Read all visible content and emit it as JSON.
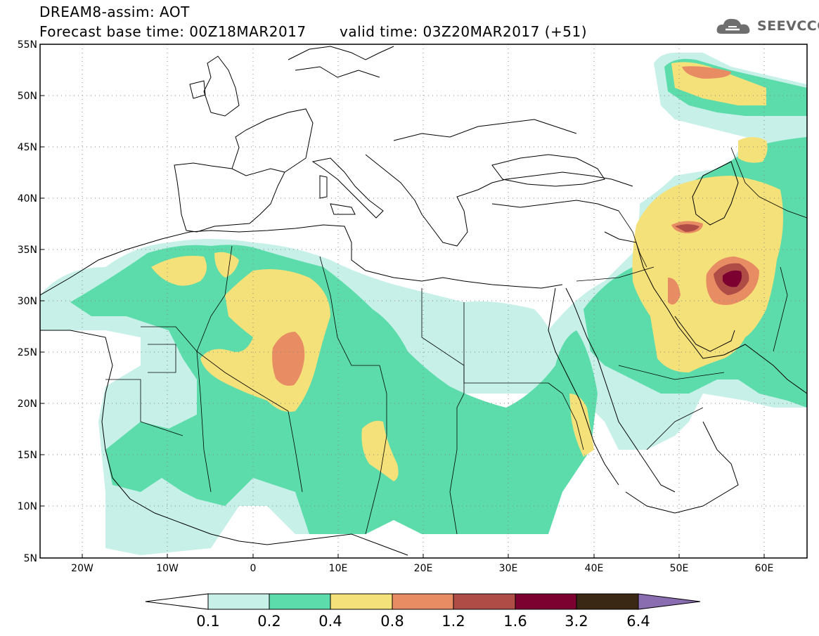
{
  "title": {
    "line1": "DREAM8-assim: AOT",
    "line2": "Forecast base time: 00Z18MAR2017",
    "line3": "valid time: 03Z20MAR2017 (+51)"
  },
  "logo": {
    "text": "SEEVCCC",
    "icon": "cloud-logo-icon"
  },
  "axes": {
    "lat_labels": [
      "55N",
      "50N",
      "45N",
      "40N",
      "35N",
      "30N",
      "25N",
      "20N",
      "15N",
      "10N",
      "5N"
    ],
    "lon_labels": [
      "20W",
      "10W",
      "0",
      "10E",
      "20E",
      "30E",
      "40E",
      "50E",
      "60E"
    ],
    "lat_range": [
      5,
      55
    ],
    "lon_range": [
      -25,
      65
    ],
    "grid": "dotted"
  },
  "colorbar": {
    "labels": [
      "0.1",
      "0.2",
      "0.4",
      "0.8",
      "1.2",
      "1.6",
      "3.2",
      "6.4"
    ],
    "colors": [
      "#c6f0e8",
      "#5cdcaa",
      "#f5e17a",
      "#e88c64",
      "#b04c46",
      "#7c0030",
      "#3a2814",
      "#8a6cb0"
    ]
  }
}
